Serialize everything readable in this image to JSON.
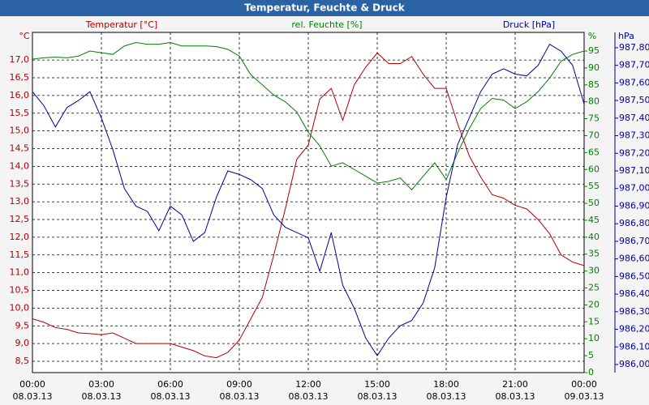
{
  "chart_data": {
    "type": "line",
    "title": "Temperatur, Feuchte & Druck",
    "y_label": "°C",
    "y2_label": "%",
    "y3_label": "hPa",
    "grid": true,
    "xlim": [
      0,
      24
    ],
    "xticks": [
      {
        "value": 0,
        "label": "00:00",
        "date": "08.03.13"
      },
      {
        "value": 3,
        "label": "03:00",
        "date": "08.03.13"
      },
      {
        "value": 6,
        "label": "06:00",
        "date": "08.03.13"
      },
      {
        "value": 9,
        "label": "09:00",
        "date": "08.03.13"
      },
      {
        "value": 12,
        "label": "12:00",
        "date": "08.03.13"
      },
      {
        "value": 15,
        "label": "15:00",
        "date": "08.03.13"
      },
      {
        "value": 18,
        "label": "18:00",
        "date": "08.03.13"
      },
      {
        "value": 21,
        "label": "21:00",
        "date": "08.03.13"
      },
      {
        "value": 24,
        "label": "00:00",
        "date": "09.03.13"
      }
    ],
    "ylim": [
      8.18,
      17.78
    ],
    "yticks": [
      {
        "value": 8.5,
        "label": "8,5"
      },
      {
        "value": 9,
        "label": "9,0"
      },
      {
        "value": 9.5,
        "label": "9,5"
      },
      {
        "value": 10,
        "label": "10,0"
      },
      {
        "value": 10.5,
        "label": "10,5"
      },
      {
        "value": 11,
        "label": "11,0"
      },
      {
        "value": 11.5,
        "label": "11,5"
      },
      {
        "value": 12,
        "label": "12,0"
      },
      {
        "value": 12.5,
        "label": "12,5"
      },
      {
        "value": 13,
        "label": "13,0"
      },
      {
        "value": 13.5,
        "label": "13,5"
      },
      {
        "value": 14,
        "label": "14,0"
      },
      {
        "value": 14.5,
        "label": "14,5"
      },
      {
        "value": 15,
        "label": "15,0"
      },
      {
        "value": 15.5,
        "label": "15,5"
      },
      {
        "value": 16,
        "label": "16,0"
      },
      {
        "value": 16.5,
        "label": "16,5"
      },
      {
        "value": 17,
        "label": "17,0"
      }
    ],
    "y2lim": [
      0,
      100.5
    ],
    "y2ticks": [
      0,
      5,
      10,
      15,
      20,
      25,
      30,
      35,
      40,
      45,
      50,
      55,
      60,
      65,
      70,
      75,
      80,
      85,
      90,
      95
    ],
    "y3lim": [
      985.954,
      987.887
    ],
    "y3ticks": [
      {
        "value": 986.0,
        "label": "986,00"
      },
      {
        "value": 986.1,
        "label": "986,10"
      },
      {
        "value": 986.2,
        "label": "986,20"
      },
      {
        "value": 986.3,
        "label": "986,30"
      },
      {
        "value": 986.4,
        "label": "986,40"
      },
      {
        "value": 986.5,
        "label": "986,50"
      },
      {
        "value": 986.6,
        "label": "986,60"
      },
      {
        "value": 986.7,
        "label": "986,70"
      },
      {
        "value": 986.8,
        "label": "986,80"
      },
      {
        "value": 986.9,
        "label": "986,90"
      },
      {
        "value": 987.0,
        "label": "987,00"
      },
      {
        "value": 987.1,
        "label": "987,10"
      },
      {
        "value": 987.2,
        "label": "987,20"
      },
      {
        "value": 987.3,
        "label": "987,30"
      },
      {
        "value": 987.4,
        "label": "987,40"
      },
      {
        "value": 987.5,
        "label": "987,50"
      },
      {
        "value": 987.6,
        "label": "987,60"
      },
      {
        "value": 987.7,
        "label": "987,70"
      },
      {
        "value": 987.8,
        "label": "987,80"
      }
    ],
    "x": [
      0,
      0.5,
      1,
      1.5,
      2,
      2.5,
      3,
      3.5,
      4,
      4.5,
      5,
      5.5,
      6,
      6.5,
      7,
      7.5,
      8,
      8.5,
      9,
      9.5,
      10,
      10.5,
      11,
      11.5,
      12,
      12.5,
      13,
      13.5,
      14,
      14.5,
      15,
      15.5,
      16,
      16.5,
      17,
      17.5,
      18,
      18.5,
      19,
      19.5,
      20,
      20.5,
      21,
      21.5,
      22,
      22.5,
      23,
      23.5,
      24
    ],
    "series": [
      {
        "name": "Temperatur [°C]",
        "color": "#b00000",
        "axis": "y",
        "values": [
          9.7,
          9.6,
          9.45,
          9.4,
          9.3,
          9.28,
          9.25,
          9.3,
          9.15,
          9.0,
          9.0,
          9.0,
          9.0,
          8.9,
          8.8,
          8.65,
          8.6,
          8.75,
          9.1,
          9.7,
          10.3,
          11.5,
          12.8,
          14.2,
          14.6,
          15.9,
          16.2,
          15.3,
          16.3,
          16.8,
          17.2,
          16.9,
          16.9,
          17.1,
          16.6,
          16.2,
          16.2,
          15.2,
          14.3,
          13.7,
          13.2,
          13.1,
          12.9,
          12.8,
          12.5,
          12.1,
          11.5,
          11.3,
          11.2
        ]
      },
      {
        "name": "rel. Feuchte [%]",
        "color": "#008000",
        "axis": "y2",
        "values": [
          92.6,
          93,
          93.2,
          93,
          93.5,
          95,
          94.5,
          94,
          96.5,
          97.5,
          97,
          97,
          97.5,
          96.5,
          96.5,
          96.5,
          96.3,
          95.5,
          93.5,
          88,
          85,
          82,
          80,
          77,
          71,
          67,
          61,
          62,
          60,
          58,
          56,
          56.5,
          57.5,
          54,
          58,
          62,
          57,
          65,
          72,
          78,
          81,
          80.5,
          78,
          80,
          83,
          87,
          92,
          94,
          95
        ]
      },
      {
        "name": "Druck [hPa]",
        "color": "#0000a0",
        "axis": "y3",
        "values": [
          987.55,
          987.47,
          987.35,
          987.46,
          987.5,
          987.55,
          987.4,
          987.22,
          987.0,
          986.9,
          986.87,
          986.76,
          986.9,
          986.85,
          986.7,
          986.75,
          986.95,
          987.1,
          987.08,
          987.05,
          987.0,
          986.85,
          986.78,
          986.75,
          986.72,
          986.53,
          986.75,
          986.45,
          986.32,
          986.15,
          986.05,
          986.15,
          986.22,
          986.25,
          986.35,
          986.55,
          986.95,
          987.25,
          987.4,
          987.55,
          987.65,
          987.68,
          987.65,
          987.64,
          987.7,
          987.82,
          987.78,
          987.7,
          987.48
        ]
      }
    ]
  }
}
